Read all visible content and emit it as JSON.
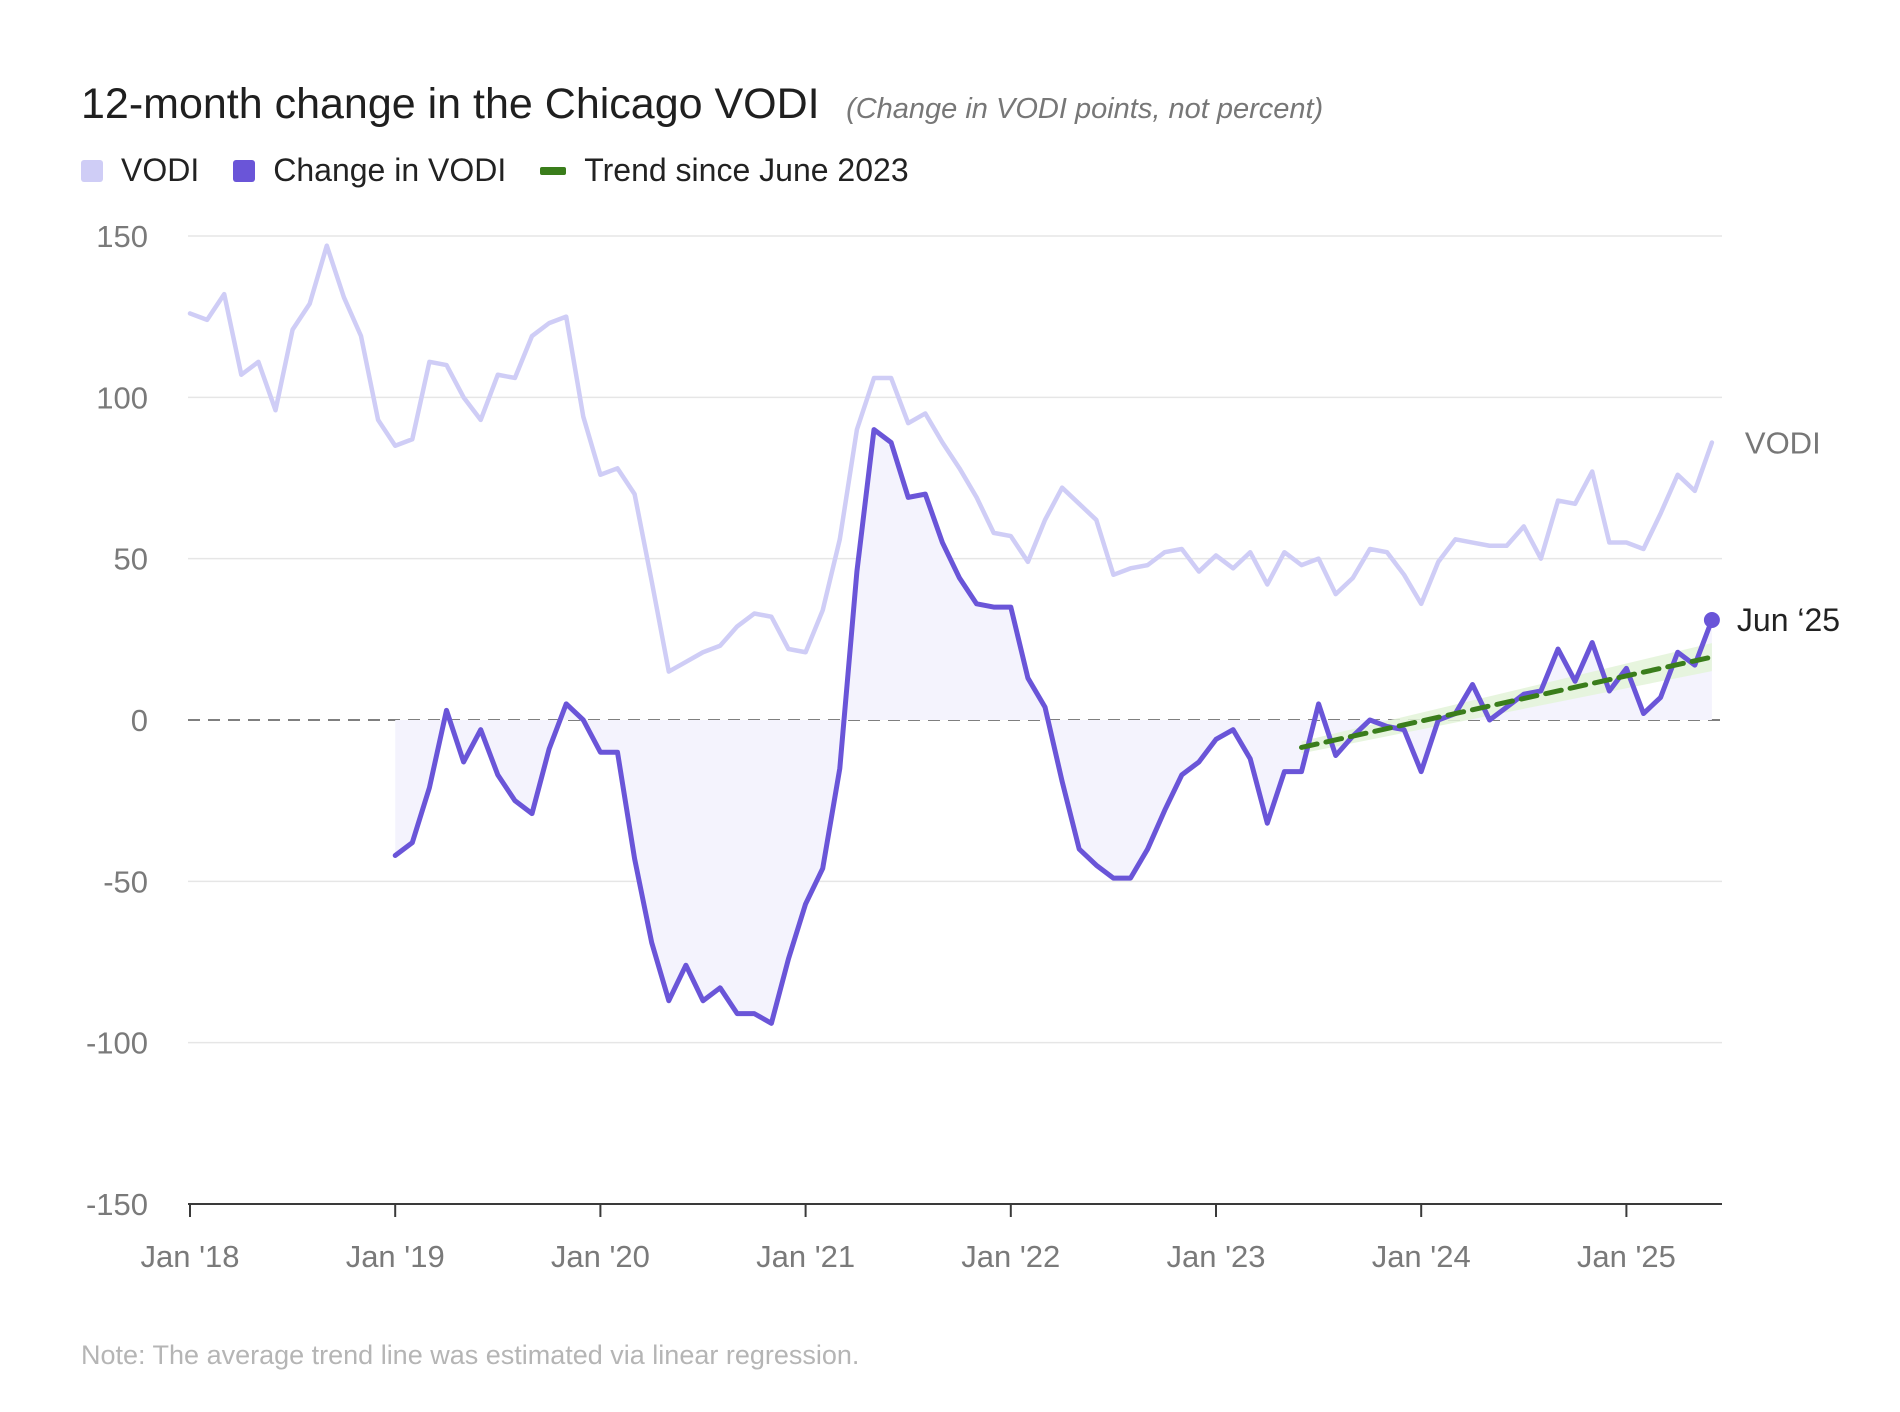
{
  "title": "12-month change in the Chicago VODI",
  "subtitle": "(Change in VODI points, not percent)",
  "legend": [
    {
      "label": "VODI",
      "color": "#cfcdf6",
      "shape": "square"
    },
    {
      "label": "Change in VODI",
      "color": "#6a55d8",
      "shape": "square"
    },
    {
      "label": "Trend since June 2023",
      "color": "#3a7d1b",
      "shape": "dash"
    }
  ],
  "footnote": "Note: The average trend line was estimated via linear regression.",
  "chart_data": {
    "type": "line",
    "x_start": "Jan '18",
    "frequency": "monthly",
    "ylim": [
      -150,
      150
    ],
    "yticks": [
      150,
      100,
      50,
      0,
      -50,
      -100,
      -150
    ],
    "xtick_labels": [
      "Jan '18",
      "Jan '19",
      "Jan '20",
      "Jan '21",
      "Jan '22",
      "Jan '23",
      "Jan '24",
      "Jan '25"
    ],
    "grid": true,
    "zero_line": "dashed",
    "series": [
      {
        "name": "VODI",
        "color": "#cfcdf6",
        "end_label": "VODI",
        "values": [
          126,
          124,
          132,
          107,
          111,
          96,
          121,
          129,
          147,
          131,
          119,
          93,
          85,
          87,
          111,
          110,
          100,
          93,
          107,
          106,
          119,
          123,
          125,
          94,
          76,
          78,
          70,
          43,
          15,
          18,
          21,
          23,
          29,
          33,
          32,
          22,
          21,
          34,
          56,
          90,
          106,
          106,
          92,
          95,
          86,
          78,
          69,
          58,
          57,
          49,
          62,
          72,
          67,
          62,
          45,
          47,
          48,
          52,
          53,
          46,
          51,
          47,
          52,
          42,
          52,
          48,
          50,
          39,
          44,
          53,
          52,
          45,
          36,
          49,
          56,
          55,
          54,
          54,
          60,
          50,
          68,
          67,
          77,
          55,
          55,
          53,
          64,
          76,
          71,
          86
        ]
      },
      {
        "name": "Change in VODI",
        "color": "#6a55d8",
        "start_index": 12,
        "end_label": "Jun ‘25",
        "values": [
          -42,
          -38,
          -21,
          3,
          -13,
          -3,
          -17,
          -25,
          -29,
          -9,
          5,
          0,
          -10,
          -10,
          -43,
          -69,
          -87,
          -76,
          -87,
          -83,
          -91,
          -91,
          -94,
          -74,
          -57,
          -46,
          -15,
          46,
          90,
          86,
          69,
          70,
          55,
          44,
          36,
          35,
          35,
          13,
          4,
          -19,
          -40,
          -45,
          -49,
          -49,
          -40,
          -28,
          -17,
          -13,
          -6,
          -3,
          -12,
          -32,
          -16,
          -16,
          5,
          -11,
          -5,
          0,
          -2,
          -3,
          -16,
          0,
          2,
          11,
          0,
          4,
          8,
          9,
          22,
          12,
          24,
          9,
          16,
          2,
          7,
          21,
          17,
          31
        ]
      }
    ],
    "trend": {
      "name": "Trend since June 2023",
      "color": "#3a7d1b",
      "start_index": 65,
      "end_index": 89,
      "start_value": -8.5,
      "end_value": 19.5
    }
  }
}
